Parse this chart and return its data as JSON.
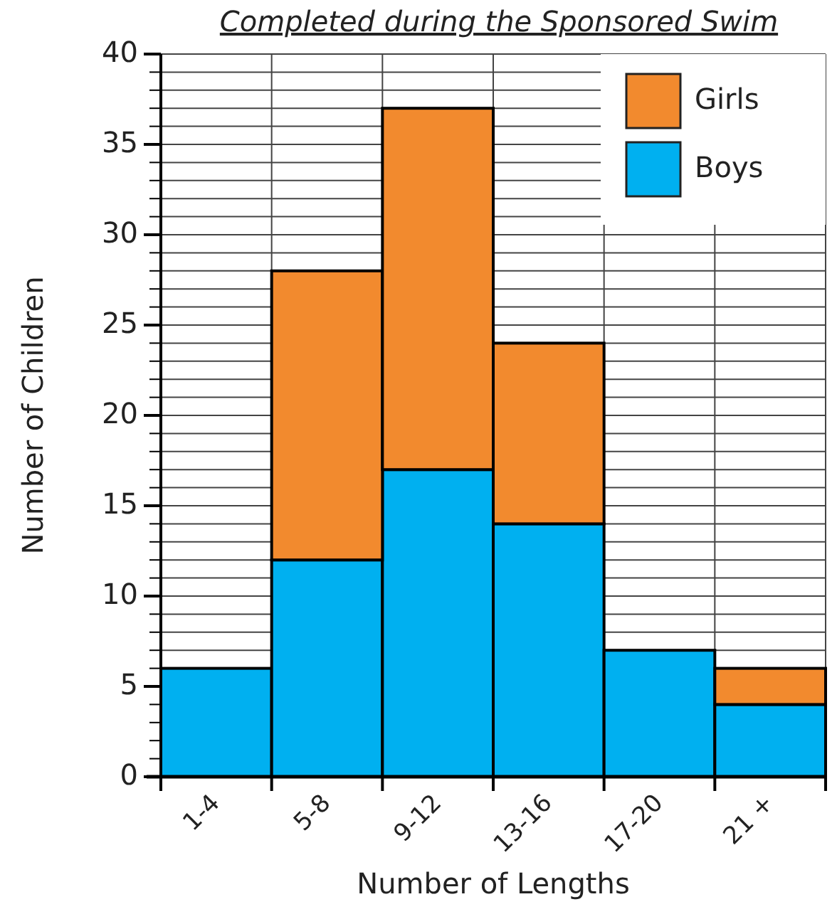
{
  "chart_data": {
    "type": "bar",
    "title": "Completed during the Sponsored Swim",
    "xlabel": "Number of Lengths",
    "ylabel": "Number of Children",
    "categories": [
      "1-4",
      "5-8",
      "9-12",
      "13-16",
      "17-20",
      "21 +"
    ],
    "stacked": true,
    "series": [
      {
        "name": "Boys",
        "color": "#00b0f0",
        "values": [
          6,
          12,
          17,
          14,
          7,
          4
        ]
      },
      {
        "name": "Girls",
        "color": "#f28a2e",
        "values": [
          0,
          16,
          20,
          10,
          0,
          2
        ]
      }
    ],
    "ylim": [
      0,
      40
    ],
    "yticks": [
      0,
      {
        "value": 1,
        "label": null
      },
      {
        "value": 2,
        "label": null
      },
      {
        "value": 3,
        "label": null
      },
      {
        "value": 4,
        "label": null
      },
      5,
      {
        "value": 6,
        "label": null
      },
      {
        "value": 7,
        "label": null
      },
      {
        "value": 8,
        "label": null
      },
      {
        "value": 9,
        "label": null
      },
      10,
      {
        "value": 11,
        "label": null
      },
      {
        "value": 12,
        "label": null
      },
      {
        "value": 13,
        "label": null
      },
      {
        "value": 14,
        "label": null
      },
      15,
      {
        "value": 16,
        "label": null
      },
      {
        "value": 17,
        "label": null
      },
      {
        "value": 18,
        "label": null
      },
      {
        "value": 19,
        "label": null
      },
      20,
      {
        "value": 21,
        "label": null
      },
      {
        "value": 22,
        "label": null
      },
      {
        "value": 23,
        "label": null
      },
      {
        "value": 24,
        "label": null
      },
      25,
      {
        "value": 26,
        "label": null
      },
      {
        "value": 27,
        "label": null
      },
      {
        "value": 28,
        "label": null
      },
      {
        "value": 29,
        "label": null
      },
      30,
      {
        "value": 31,
        "label": null
      },
      {
        "value": 32,
        "label": null
      },
      {
        "value": 33,
        "label": null
      },
      {
        "value": 34,
        "label": null
      },
      35,
      {
        "value": 36,
        "label": null
      },
      {
        "value": 37,
        "label": null
      },
      {
        "value": 38,
        "label": null
      },
      {
        "value": 39,
        "label": null
      },
      40
    ],
    "grid": true,
    "legend": "top right"
  }
}
